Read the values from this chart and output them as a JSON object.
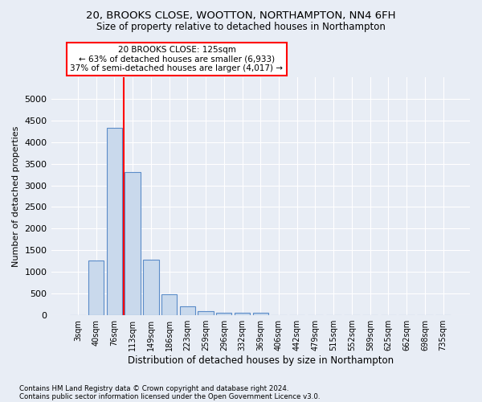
{
  "title1": "20, BROOKS CLOSE, WOOTTON, NORTHAMPTON, NN4 6FH",
  "title2": "Size of property relative to detached houses in Northampton",
  "xlabel": "Distribution of detached houses by size in Northampton",
  "ylabel": "Number of detached properties",
  "footer1": "Contains HM Land Registry data © Crown copyright and database right 2024.",
  "footer2": "Contains public sector information licensed under the Open Government Licence v3.0.",
  "annotation_line1": "20 BROOKS CLOSE: 125sqm",
  "annotation_line2": "← 63% of detached houses are smaller (6,933)",
  "annotation_line3": "37% of semi-detached houses are larger (4,017) →",
  "bar_labels": [
    "3sqm",
    "40sqm",
    "76sqm",
    "113sqm",
    "149sqm",
    "186sqm",
    "223sqm",
    "259sqm",
    "296sqm",
    "332sqm",
    "369sqm",
    "406sqm",
    "442sqm",
    "479sqm",
    "515sqm",
    "552sqm",
    "589sqm",
    "625sqm",
    "662sqm",
    "698sqm",
    "735sqm"
  ],
  "bar_values": [
    0,
    1270,
    4330,
    3300,
    1280,
    490,
    210,
    90,
    65,
    55,
    55,
    0,
    0,
    0,
    0,
    0,
    0,
    0,
    0,
    0,
    0
  ],
  "bar_color": "#c9d9ec",
  "bar_edge_color": "#5b8cc8",
  "vline_color": "red",
  "ylim": [
    0,
    5500
  ],
  "yticks": [
    0,
    500,
    1000,
    1500,
    2000,
    2500,
    3000,
    3500,
    4000,
    4500,
    5000
  ],
  "bg_color": "#e8edf5",
  "plot_bg": "#e8edf5",
  "grid_color": "#ffffff"
}
